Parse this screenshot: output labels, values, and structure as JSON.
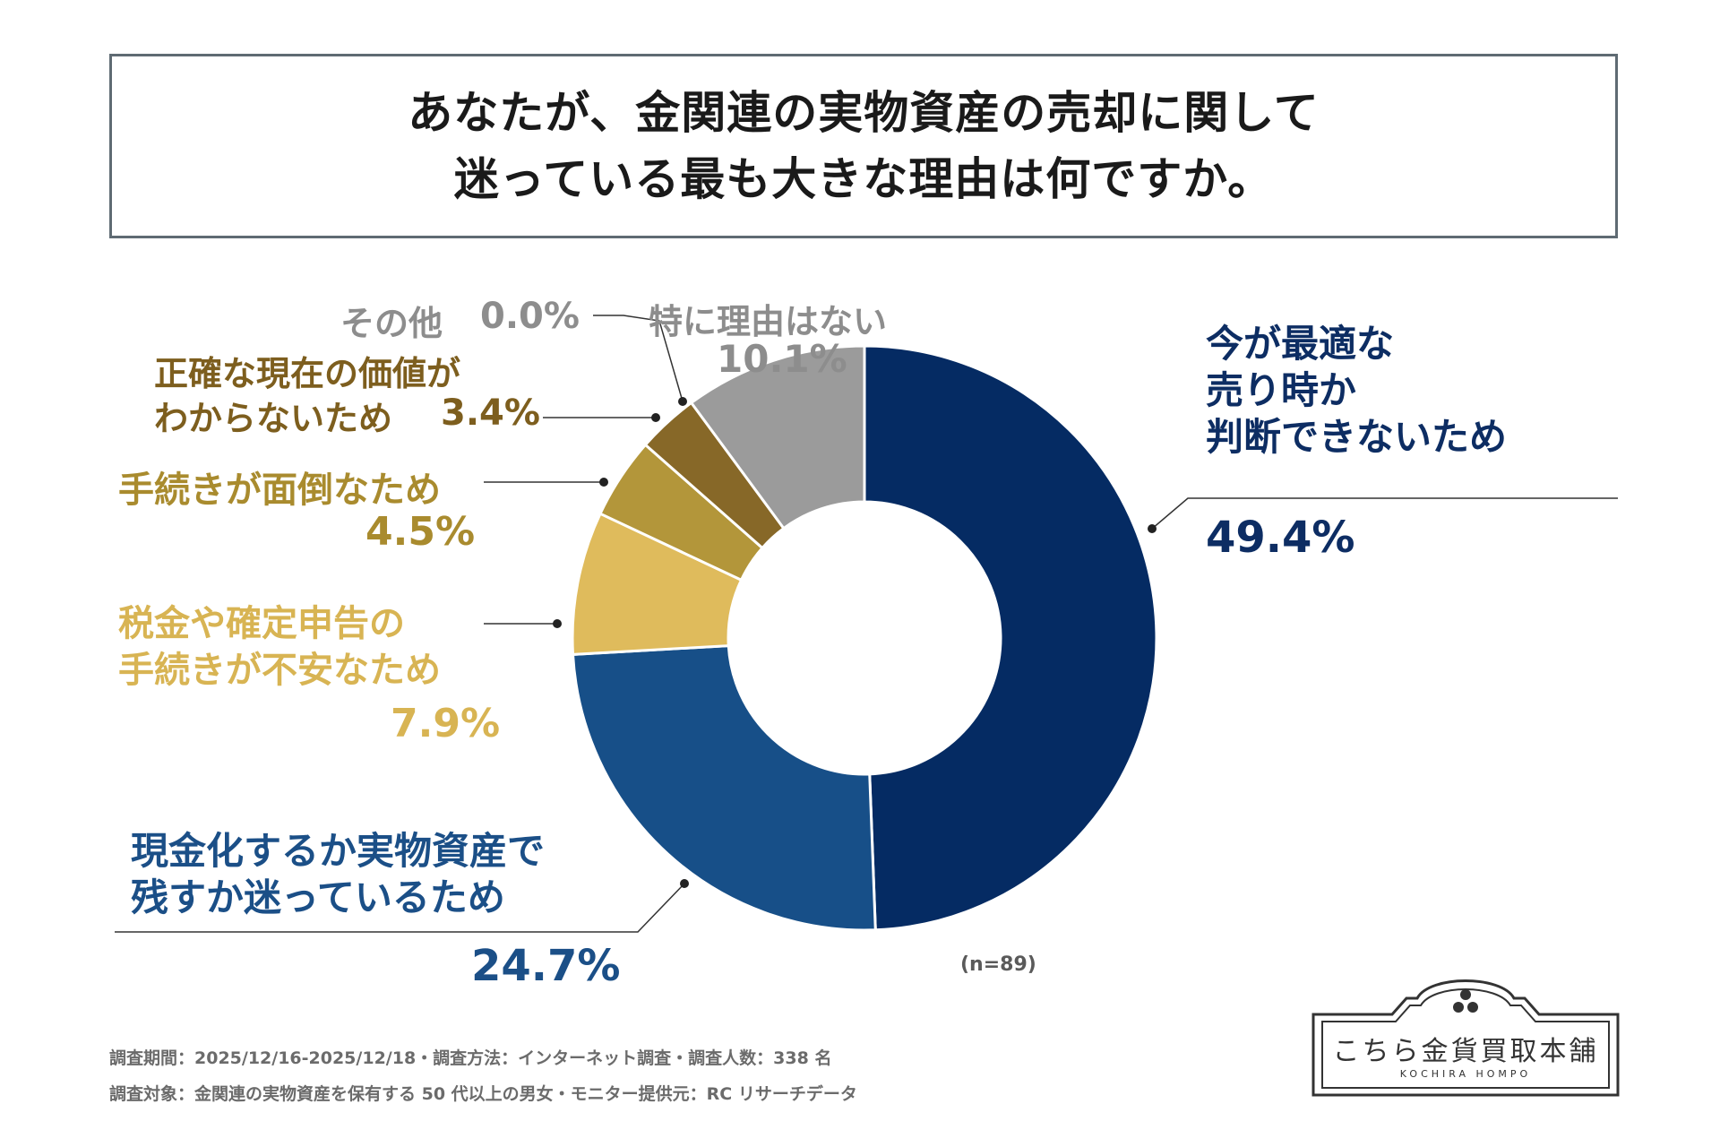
{
  "title": {
    "line1": "あなたが、金関連の実物資産の売却に関して",
    "line2": "迷っている最も大きな理由は何ですか。"
  },
  "chart_data": {
    "type": "pie",
    "donut": true,
    "title": "あなたが、金関連の実物資産の売却に関して迷っている最も大きな理由は何ですか。",
    "n_label": "(n=89)",
    "slices": [
      {
        "label_lines": [
          "今が最適な",
          "売り時か",
          "判断できないため"
        ],
        "value": 49.4,
        "value_label": "49.4%",
        "color": "#052b63"
      },
      {
        "label_lines": [
          "現金化するか実物資産で",
          "残すか迷っているため"
        ],
        "value": 24.7,
        "value_label": "24.7%",
        "color": "#174f88"
      },
      {
        "label_lines": [
          "税金や確定申告の",
          "手続きが不安なため"
        ],
        "value": 7.9,
        "value_label": "7.9%",
        "color": "#dfbb5c"
      },
      {
        "label_lines": [
          "手続きが面倒なため"
        ],
        "value": 4.5,
        "value_label": "4.5%",
        "color": "#b3963a"
      },
      {
        "label_lines": [
          "正確な現在の価値が",
          "わからないため"
        ],
        "value": 3.4,
        "value_label": "3.4%",
        "color": "#876828"
      },
      {
        "label_lines": [
          "その他"
        ],
        "value": 0.0,
        "value_label": "0.0%",
        "color": "#8d8d8d"
      },
      {
        "label_lines": [
          "特に理由はない"
        ],
        "value": 10.1,
        "value_label": "10.1%",
        "color": "#9b9b9b"
      }
    ]
  },
  "footer": {
    "line1": "調査期間：2025/12/16-2025/12/18・調査方法：インターネット調査・調査人数：338 名",
    "line2": "調査対象：金関連の実物資産を保有する 50 代以上の男女・モニター提供元：RC リサーチデータ"
  },
  "logo": {
    "name": "こちら金貨買取本舗",
    "sub": "KOCHIRA HOMPO"
  }
}
